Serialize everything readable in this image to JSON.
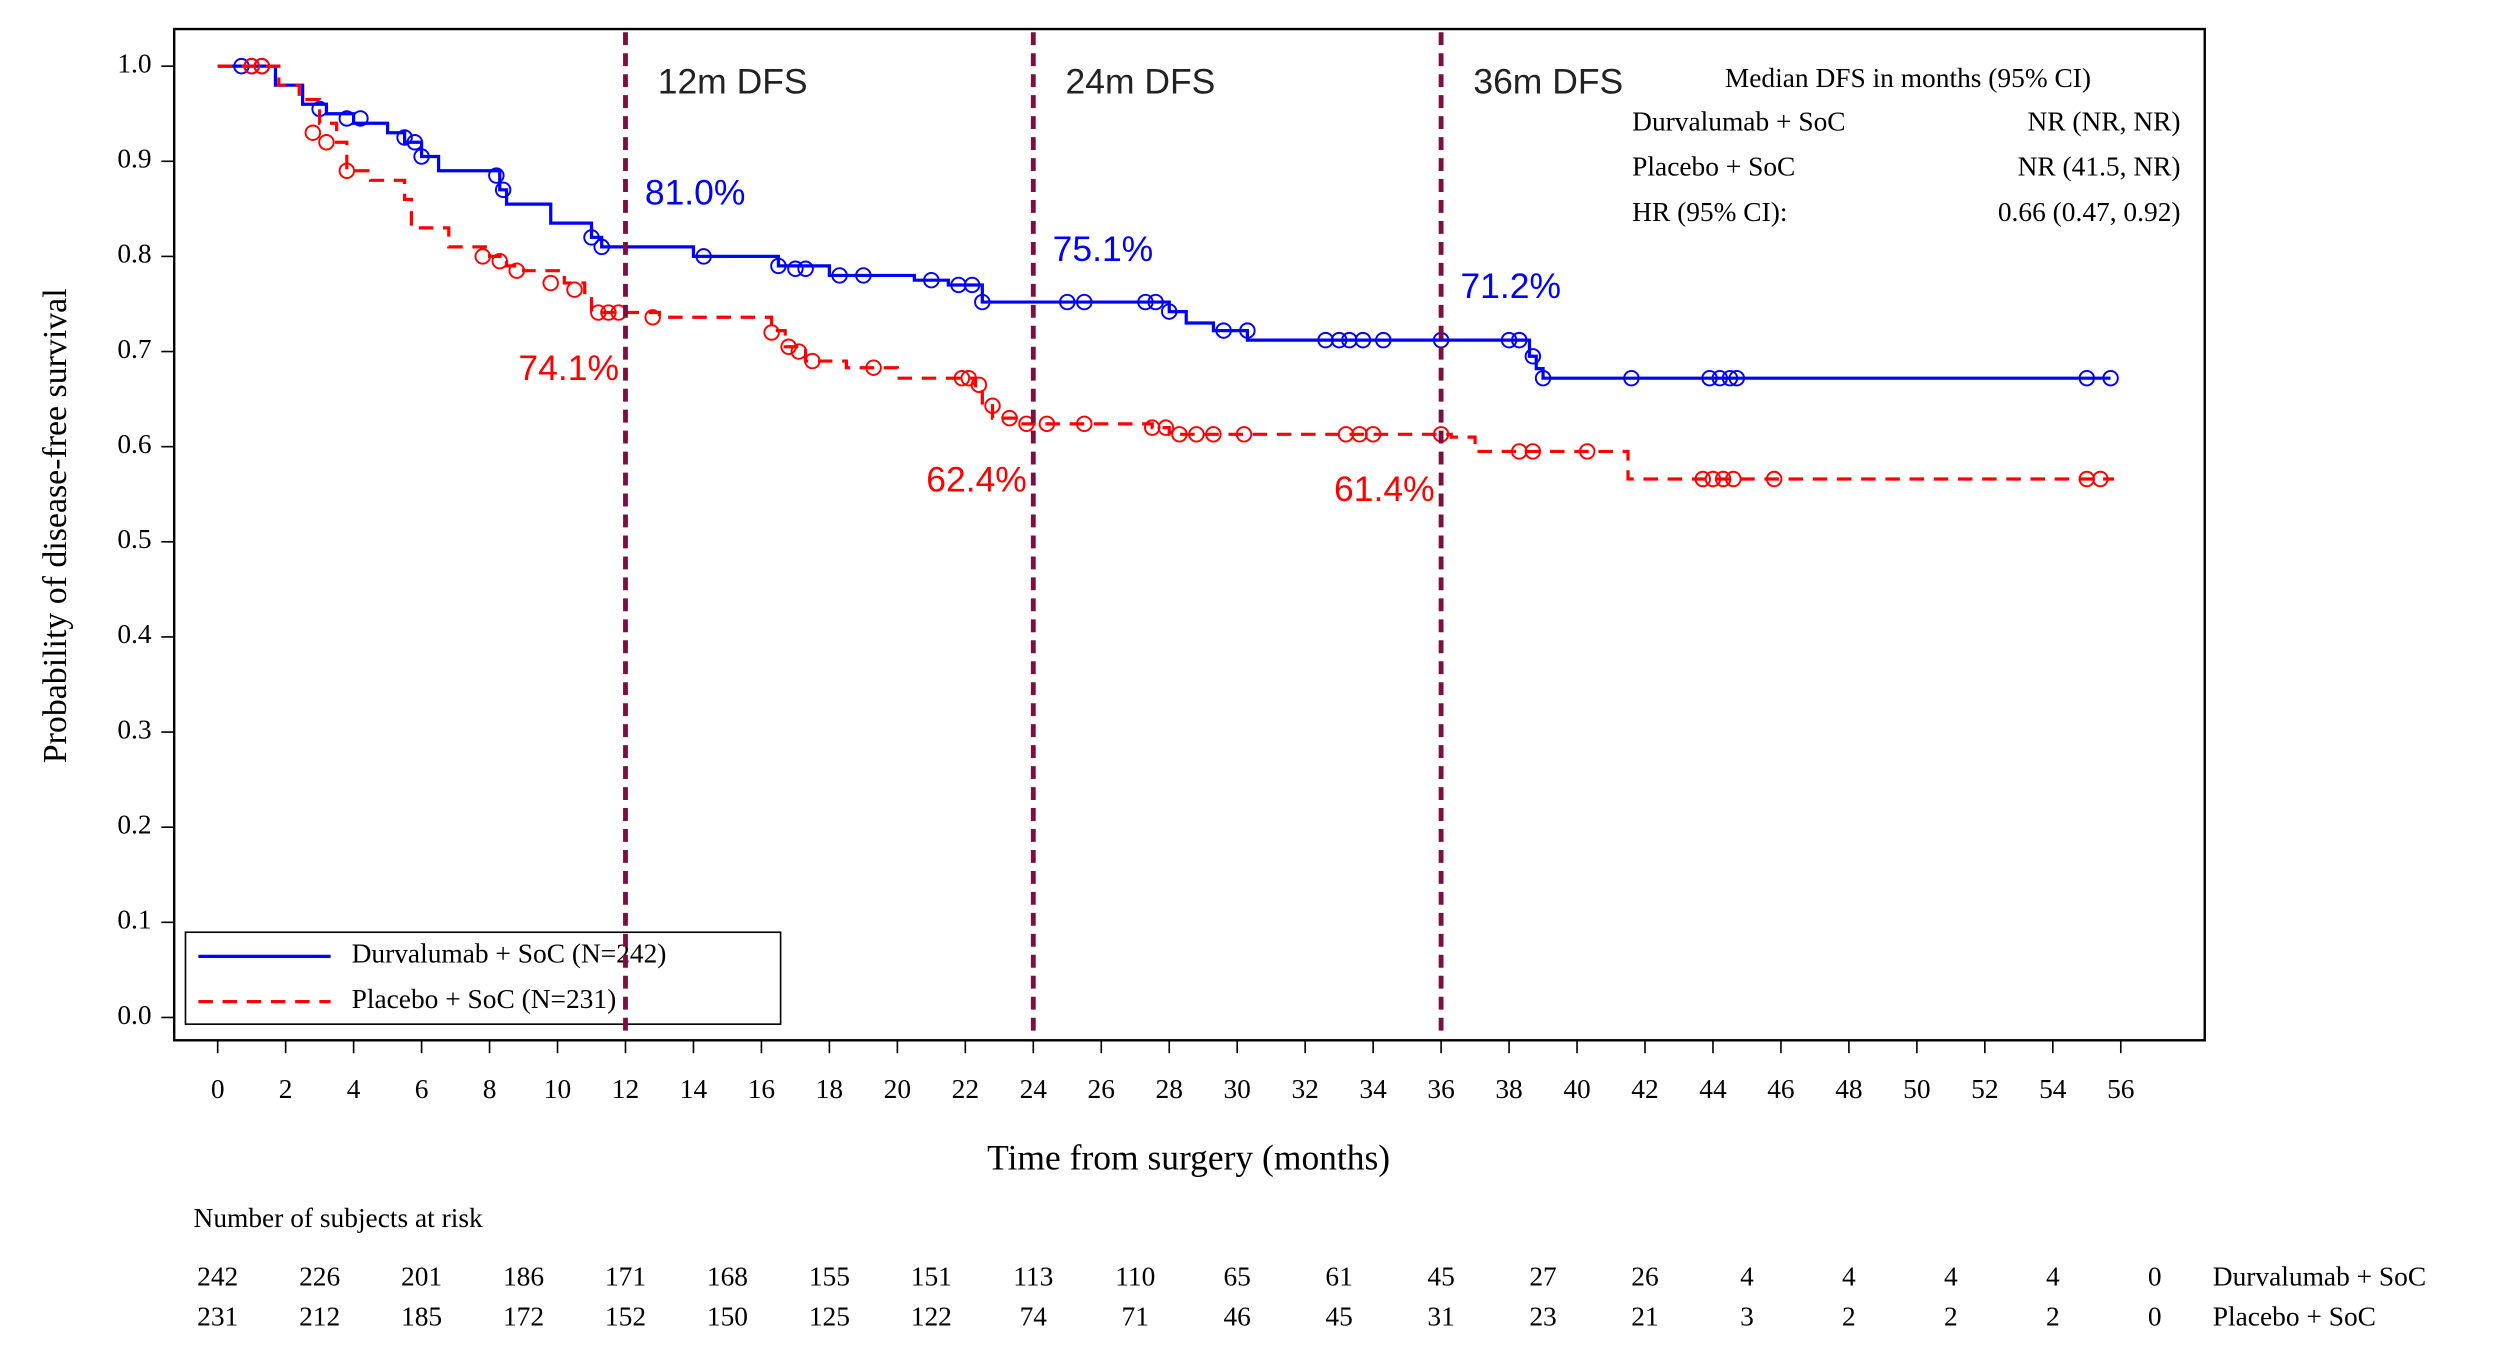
{
  "chart_data": {
    "type": "km",
    "x_label": "Time from surgery (months)",
    "y_label": "Probability of disease-free survival",
    "xlim": [
      -1.28,
      58.47
    ],
    "ylim": [
      -0.024,
      1.039
    ],
    "xticks": [
      0,
      2,
      4,
      6,
      8,
      10,
      12,
      14,
      16,
      18,
      20,
      22,
      24,
      26,
      28,
      30,
      32,
      34,
      36,
      38,
      40,
      42,
      44,
      46,
      48,
      50,
      52,
      54,
      56
    ],
    "yticks": [
      {
        "value": 0,
        "label": "0.0"
      },
      0.1,
      0.2,
      0.3,
      0.4,
      0.5,
      0.6,
      0.7,
      0.8,
      0.9,
      {
        "value": 1,
        "label": "1.0"
      }
    ],
    "series": [
      {
        "name": "Durvalumab + SoC (N=242)",
        "color": "#0000ff",
        "dash": false,
        "x": [
          0,
          1.7,
          2.5,
          3.2,
          4,
          5,
          5.5,
          6,
          6.5,
          8.3,
          8.5,
          9.8,
          11,
          11.3,
          14,
          16.5,
          18,
          20.5,
          21.5,
          22.5,
          28,
          28.5,
          29.3,
          30.3,
          38.6,
          38.8,
          39,
          55.7
        ],
        "y": [
          1,
          0.98,
          0.96,
          0.95,
          0.94,
          0.93,
          0.92,
          0.905,
          0.89,
          0.87,
          0.855,
          0.835,
          0.82,
          0.81,
          0.8,
          0.79,
          0.78,
          0.775,
          0.77,
          0.752,
          0.742,
          0.73,
          0.722,
          0.712,
          0.695,
          0.682,
          0.672,
          0.672
        ],
        "censored": {
          "x": [
            0.7,
            1,
            1.3,
            3,
            3.8,
            4.2,
            5.5,
            5.8,
            6,
            8.2,
            8.4,
            11,
            11.3,
            14.3,
            16.5,
            17,
            17.3,
            18.3,
            19,
            21,
            21.8,
            22.2,
            22.5,
            25,
            25.5,
            27.3,
            27.6,
            28,
            29.6,
            30.3,
            32.6,
            33,
            33.3,
            33.7,
            34.3,
            36,
            38,
            38.3,
            38.7,
            39,
            41.6,
            43.9,
            44.2,
            44.5,
            44.7,
            55,
            55.7
          ],
          "y": [
            1,
            1,
            1,
            0.955,
            0.945,
            0.945,
            0.925,
            0.92,
            0.905,
            0.885,
            0.87,
            0.82,
            0.81,
            0.8,
            0.79,
            0.787,
            0.787,
            0.78,
            0.78,
            0.775,
            0.77,
            0.77,
            0.752,
            0.752,
            0.752,
            0.752,
            0.752,
            0.742,
            0.722,
            0.722,
            0.712,
            0.712,
            0.712,
            0.712,
            0.712,
            0.712,
            0.712,
            0.712,
            0.695,
            0.672,
            0.672,
            0.672,
            0.672,
            0.672,
            0.672,
            0.672,
            0.672
          ]
        }
      },
      {
        "name": "Placebo + SoC (N=231)",
        "color": "#ff0000",
        "dash": true,
        "x": [
          0,
          1.8,
          2.4,
          3,
          3.5,
          3.8,
          4.5,
          5.5,
          5.7,
          6.8,
          8,
          8.5,
          9,
          10.2,
          10.8,
          11,
          13,
          16.3,
          16.7,
          17.3,
          18.5,
          20,
          22.3,
          22.5,
          22.8,
          23.5,
          27.5,
          28,
          36.3,
          37,
          41.5,
          55.8
        ],
        "y": [
          1,
          0.98,
          0.965,
          0.94,
          0.92,
          0.89,
          0.88,
          0.86,
          0.83,
          0.81,
          0.8,
          0.79,
          0.785,
          0.772,
          0.762,
          0.741,
          0.736,
          0.722,
          0.705,
          0.69,
          0.683,
          0.672,
          0.66,
          0.643,
          0.63,
          0.624,
          0.62,
          0.613,
          0.61,
          0.595,
          0.566,
          0.566
        ],
        "censored": {
          "x": [
            1,
            1.3,
            2.8,
            3.2,
            3.8,
            7.8,
            8.3,
            8.8,
            9.8,
            10.5,
            11.2,
            11.5,
            11.8,
            12.8,
            16.3,
            16.8,
            17.1,
            17.5,
            19.3,
            21.9,
            22.1,
            22.4,
            22.8,
            23.3,
            23.8,
            24.4,
            25.5,
            27.5,
            27.9,
            28.3,
            28.8,
            29.3,
            30.2,
            33.2,
            33.6,
            34,
            36,
            38.3,
            38.7,
            40.3,
            43.7,
            44,
            44.3,
            44.6,
            45.8,
            55,
            55.4
          ],
          "y": [
            1,
            1,
            0.93,
            0.92,
            0.89,
            0.8,
            0.795,
            0.785,
            0.772,
            0.765,
            0.741,
            0.741,
            0.741,
            0.736,
            0.72,
            0.705,
            0.7,
            0.69,
            0.683,
            0.672,
            0.672,
            0.665,
            0.643,
            0.63,
            0.624,
            0.624,
            0.624,
            0.62,
            0.62,
            0.613,
            0.613,
            0.613,
            0.613,
            0.613,
            0.613,
            0.613,
            0.613,
            0.595,
            0.595,
            0.595,
            0.566,
            0.566,
            0.566,
            0.566,
            0.566,
            0.566,
            0.566
          ]
        }
      }
    ],
    "milestones": [
      {
        "x": 12,
        "title": "12m DFS",
        "durvalumab": {
          "value": 0.81,
          "label": "81.0%"
        },
        "placebo": {
          "value": 0.741,
          "label": "74.1%"
        }
      },
      {
        "x": 24,
        "title": "24m DFS",
        "durvalumab": {
          "value": 0.751,
          "label": "75.1%"
        },
        "placebo": {
          "value": 0.624,
          "label": "62.4%"
        }
      },
      {
        "x": 36,
        "title": "36m DFS",
        "durvalumab": {
          "value": 0.712,
          "label": "71.2%"
        },
        "placebo": {
          "value": 0.614,
          "label": "61.4%"
        }
      }
    ],
    "median_table": {
      "title": "Median DFS in months (95% CI)",
      "rows": [
        [
          "Durvalumab + SoC",
          "NR (NR, NR)"
        ],
        [
          "Placebo + SoC",
          "NR (41.5, NR)"
        ],
        [
          "HR (95% CI):",
          "0.66 (0.47, 0.92)"
        ]
      ]
    },
    "at_risk": {
      "title": "Number of subjects at risk",
      "times": [
        0,
        3,
        6,
        9,
        12,
        15,
        18,
        21,
        24,
        27,
        30,
        33,
        36,
        39,
        42,
        45,
        48,
        51,
        54,
        57
      ],
      "rows": [
        {
          "name": "Durvalumab + SoC",
          "values": [
            242,
            226,
            201,
            186,
            171,
            168,
            155,
            151,
            113,
            110,
            65,
            61,
            45,
            27,
            26,
            4,
            4,
            4,
            4,
            0
          ]
        },
        {
          "name": "Placebo + SoC",
          "values": [
            231,
            212,
            185,
            172,
            152,
            150,
            125,
            122,
            74,
            71,
            46,
            45,
            31,
            23,
            21,
            3,
            2,
            2,
            2,
            0
          ]
        }
      ]
    }
  }
}
